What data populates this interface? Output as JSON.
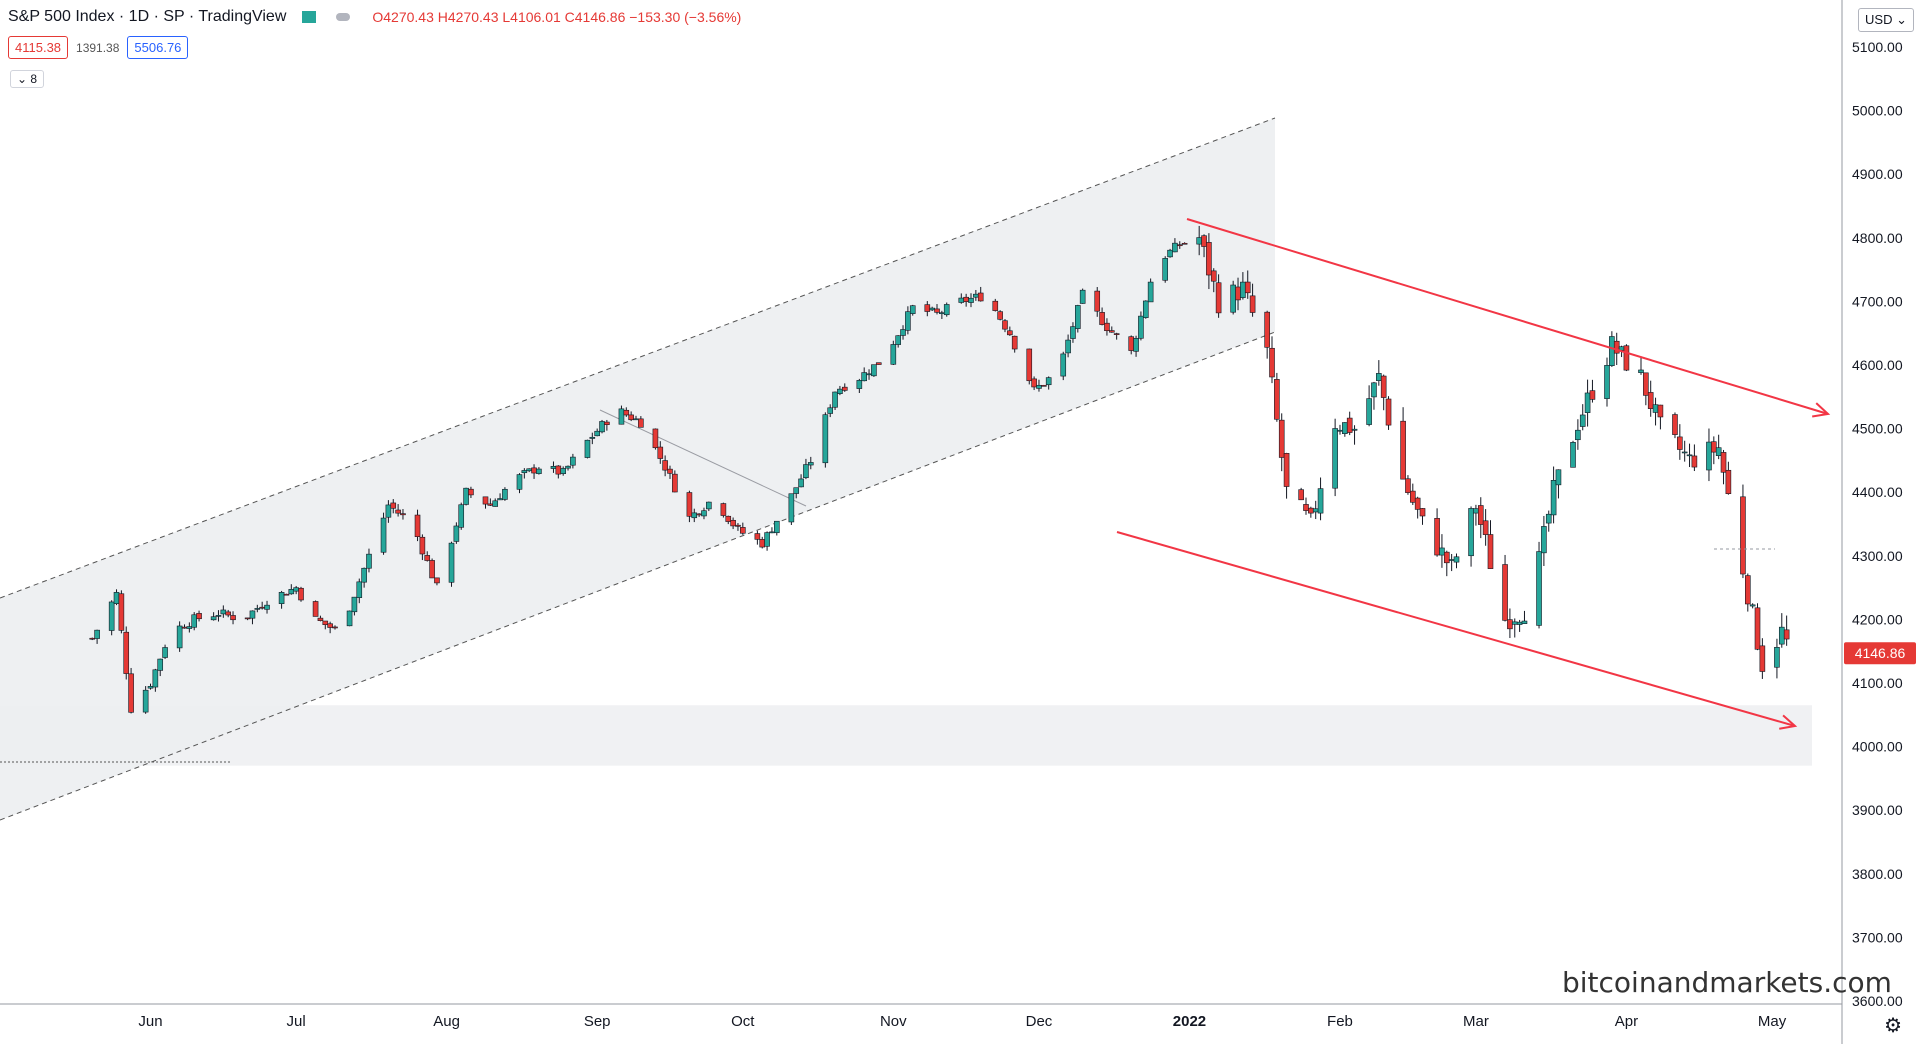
{
  "header": {
    "symbol": "S&P 500 Index · 1D · SP · TradingView",
    "ohlc": "O4270.43 H4270.43 L4106.01 C4146.86 −153.30 (−3.56%)",
    "indicator_low": "4115.38",
    "indicator_mid": "1391.38",
    "indicator_high": "5506.76",
    "collapse_count": "8"
  },
  "toolbar": {
    "currency": "USD",
    "settings_icon": "gear-icon"
  },
  "watermark": "bitcoinandmarkets.com",
  "colors": {
    "up": "#26a69a",
    "down": "#e53935",
    "trend": "#f23645",
    "channel": "#555555",
    "zone": "#f0f1f3"
  },
  "chart_data": {
    "type": "candlestick",
    "price_axis": {
      "ticks": [
        "5100.00",
        "5000.00",
        "4900.00",
        "4800.00",
        "4700.00",
        "4600.00",
        "4500.00",
        "4400.00",
        "4300.00",
        "4200.00",
        "4100.00",
        "4000.00",
        "3900.00",
        "3800.00",
        "3700.00",
        "3600.00"
      ],
      "current_price_label": "4146.86"
    },
    "time_axis": {
      "ticks": [
        "Jun",
        "Jul",
        "Aug",
        "Sep",
        "Oct",
        "Nov",
        "Dec",
        "2022",
        "Feb",
        "Mar",
        "Apr",
        "May"
      ]
    },
    "price_path": [
      [
        "2021-05-20",
        4170
      ],
      [
        "2021-05-25",
        4240
      ],
      [
        "2021-05-28",
        4060
      ],
      [
        "2021-06-01",
        4100
      ],
      [
        "2021-06-05",
        4180
      ],
      [
        "2021-06-10",
        4200
      ],
      [
        "2021-06-15",
        4210
      ],
      [
        "2021-06-20",
        4200
      ],
      [
        "2021-06-25",
        4230
      ],
      [
        "2021-07-01",
        4250
      ],
      [
        "2021-07-05",
        4200
      ],
      [
        "2021-07-10",
        4180
      ],
      [
        "2021-07-15",
        4280
      ],
      [
        "2021-07-20",
        4380
      ],
      [
        "2021-07-25",
        4350
      ],
      [
        "2021-07-30",
        4250
      ],
      [
        "2021-08-05",
        4400
      ],
      [
        "2021-08-10",
        4380
      ],
      [
        "2021-08-15",
        4420
      ],
      [
        "2021-08-20",
        4440
      ],
      [
        "2021-08-25",
        4430
      ],
      [
        "2021-08-30",
        4480
      ],
      [
        "2021-09-05",
        4530
      ],
      [
        "2021-09-10",
        4510
      ],
      [
        "2021-09-15",
        4440
      ],
      [
        "2021-09-20",
        4360
      ],
      [
        "2021-09-25",
        4390
      ],
      [
        "2021-09-30",
        4340
      ],
      [
        "2021-10-05",
        4320
      ],
      [
        "2021-10-10",
        4380
      ],
      [
        "2021-10-15",
        4450
      ],
      [
        "2021-10-20",
        4560
      ],
      [
        "2021-10-25",
        4580
      ],
      [
        "2021-10-30",
        4610
      ],
      [
        "2021-11-05",
        4690
      ],
      [
        "2021-11-10",
        4680
      ],
      [
        "2021-11-15",
        4700
      ],
      [
        "2021-11-20",
        4710
      ],
      [
        "2021-11-25",
        4650
      ],
      [
        "2021-11-30",
        4560
      ],
      [
        "2021-12-05",
        4590
      ],
      [
        "2021-12-10",
        4710
      ],
      [
        "2021-12-15",
        4660
      ],
      [
        "2021-12-20",
        4620
      ],
      [
        "2021-12-25",
        4760
      ],
      [
        "2021-12-30",
        4790
      ],
      [
        "2022-01-03",
        4800
      ],
      [
        "2022-01-07",
        4700
      ],
      [
        "2022-01-12",
        4720
      ],
      [
        "2022-01-17",
        4620
      ],
      [
        "2022-01-21",
        4400
      ],
      [
        "2022-01-26",
        4350
      ],
      [
        "2022-01-31",
        4510
      ],
      [
        "2022-02-04",
        4500
      ],
      [
        "2022-02-09",
        4580
      ],
      [
        "2022-02-14",
        4420
      ],
      [
        "2022-02-18",
        4350
      ],
      [
        "2022-02-24",
        4280
      ],
      [
        "2022-03-01",
        4380
      ],
      [
        "2022-03-07",
        4200
      ],
      [
        "2022-03-12",
        4220
      ],
      [
        "2022-03-17",
        4400
      ],
      [
        "2022-03-22",
        4510
      ],
      [
        "2022-03-29",
        4630
      ],
      [
        "2022-04-04",
        4580
      ],
      [
        "2022-04-08",
        4500
      ],
      [
        "2022-04-14",
        4450
      ],
      [
        "2022-04-20",
        4470
      ],
      [
        "2022-04-25",
        4280
      ],
      [
        "2022-04-29",
        4130
      ],
      [
        "2022-05-03",
        4180
      ],
      [
        "2022-05-05",
        4146.86
      ]
    ],
    "annotations": {
      "rising_channel": "dashed parallel channel from May 2021 to Jan 2022",
      "falling_channel": "red descending channel from Jan 2022 to May 2022",
      "support_zone": [
        3970,
        4065
      ]
    }
  }
}
